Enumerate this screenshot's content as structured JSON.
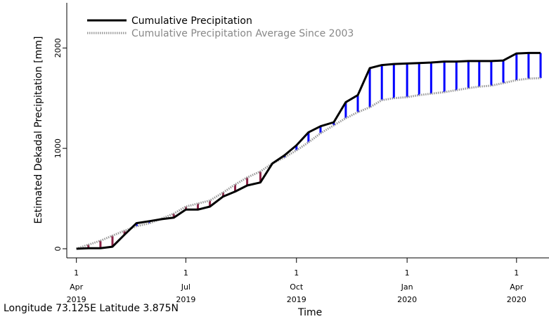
{
  "chart_data": {
    "type": "line",
    "ylabel": "Estimated Dekadal Precipitation [mm]",
    "xlabel": "Time",
    "footer": "Longitude 73.125E Latitude 3.875N",
    "ylim": [
      0,
      2450
    ],
    "xlim": [
      "2019-03-24",
      "2020-04-28"
    ],
    "y_ticks": [
      {
        "value": 0,
        "label": "0"
      },
      {
        "value": 1000,
        "label": "1000"
      },
      {
        "value": 2000,
        "label": "2000"
      }
    ],
    "x_ticks": [
      {
        "date": "2019-04-01",
        "day": "1",
        "month": "Apr",
        "year": "2019"
      },
      {
        "date": "2019-07-01",
        "day": "1",
        "month": "Jul",
        "year": "2019"
      },
      {
        "date": "2019-10-01",
        "day": "1",
        "month": "Oct",
        "year": "2019"
      },
      {
        "date": "2020-01-01",
        "day": "1",
        "month": "Jan",
        "year": "2020"
      },
      {
        "date": "2020-04-01",
        "day": "1",
        "month": "Apr",
        "year": "2020"
      }
    ],
    "legend": {
      "placement": "top-left",
      "entries": [
        "Cumulative Precipitation",
        "Cumulative Precipitation Average Since 2003"
      ]
    },
    "colors": {
      "cumulative": "#000000",
      "average": "#999999",
      "above_average": "#0000ff",
      "below_average": "#8b2346"
    },
    "x": [
      "2019-04-01",
      "2019-04-11",
      "2019-04-21",
      "2019-05-01",
      "2019-05-11",
      "2019-05-21",
      "2019-06-01",
      "2019-06-11",
      "2019-06-21",
      "2019-07-01",
      "2019-07-11",
      "2019-07-21",
      "2019-08-01",
      "2019-08-11",
      "2019-08-21",
      "2019-09-01",
      "2019-09-11",
      "2019-09-21",
      "2019-10-01",
      "2019-10-11",
      "2019-10-21",
      "2019-11-01",
      "2019-11-11",
      "2019-11-21",
      "2019-12-01",
      "2019-12-11",
      "2019-12-21",
      "2020-01-01",
      "2020-01-11",
      "2020-01-21",
      "2020-02-01",
      "2020-02-11",
      "2020-02-21",
      "2020-03-01",
      "2020-03-11",
      "2020-03-21",
      "2020-04-01",
      "2020-04-11",
      "2020-04-21"
    ],
    "series": [
      {
        "name": "Cumulative Precipitation",
        "values": [
          0,
          5,
          5,
          20,
          140,
          255,
          275,
          295,
          310,
          390,
          390,
          420,
          520,
          570,
          630,
          660,
          850,
          930,
          1030,
          1160,
          1220,
          1260,
          1460,
          1530,
          1800,
          1830,
          1840,
          1845,
          1850,
          1855,
          1865,
          1865,
          1870,
          1870,
          1870,
          1875,
          1945,
          1950,
          1950
        ]
      },
      {
        "name": "Cumulative Precipitation Average Since 2003",
        "values": [
          0,
          40,
          80,
          130,
          180,
          225,
          255,
          300,
          350,
          420,
          450,
          480,
          560,
          640,
          710,
          770,
          850,
          910,
          980,
          1060,
          1150,
          1230,
          1300,
          1360,
          1410,
          1480,
          1500,
          1510,
          1530,
          1545,
          1560,
          1580,
          1600,
          1615,
          1625,
          1650,
          1680,
          1695,
          1700
        ]
      }
    ]
  }
}
